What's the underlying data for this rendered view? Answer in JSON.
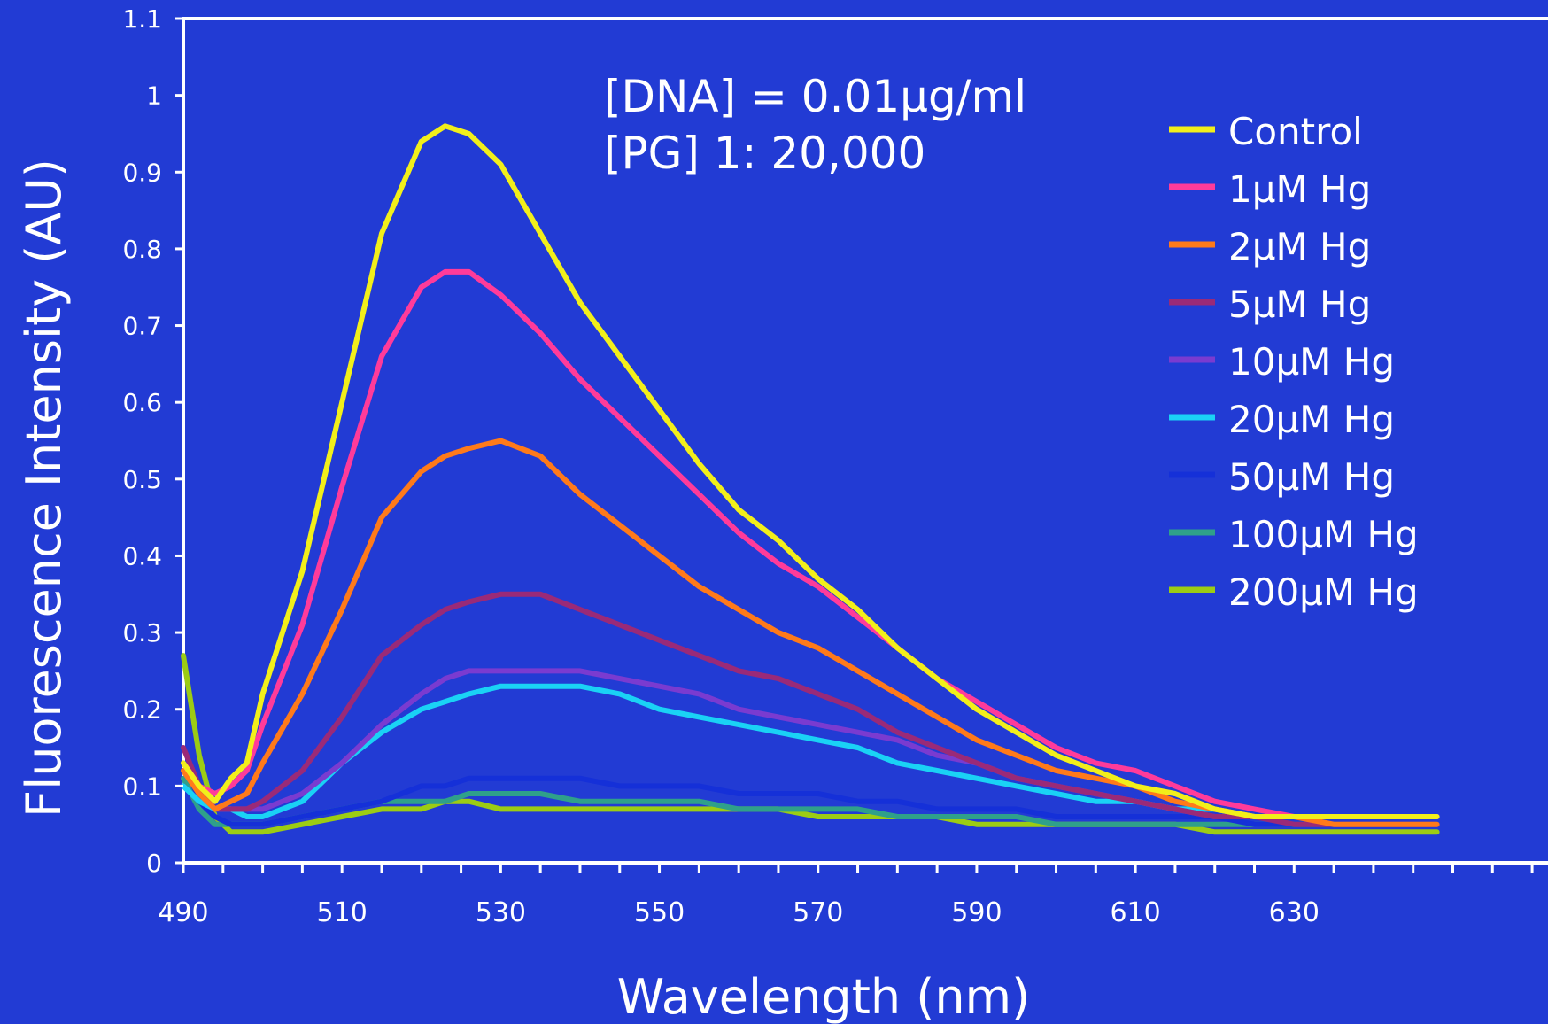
{
  "chart_data": {
    "type": "line",
    "xlabel": "Wavelength (nm)",
    "ylabel": "Fluorescence Intensity (AU)",
    "annotation": [
      "[DNA] = 0.01μg/ml",
      "[PG] 1: 20,000"
    ],
    "xlim": [
      490,
      648
    ],
    "ylim": [
      0,
      1.1
    ],
    "x_ticks": [
      490,
      510,
      530,
      550,
      570,
      590,
      610,
      630
    ],
    "y_ticks": [
      0,
      0.1,
      0.2,
      0.3,
      0.4,
      0.5,
      0.6,
      0.7,
      0.8,
      0.9,
      1,
      1.1
    ],
    "y_tick_labels": [
      "0",
      "0.1",
      "0.2",
      "0.3",
      "0.4",
      "0.5",
      "0.6",
      "0.7",
      "0.8",
      "0.9",
      "1",
      "1.1"
    ],
    "legend_position": "top-right",
    "grid": false,
    "colors": {
      "background": "#223bd4",
      "axis": "#ffffff"
    },
    "x": [
      490,
      492,
      494,
      496,
      498,
      500,
      505,
      510,
      515,
      520,
      523,
      526,
      530,
      535,
      540,
      545,
      550,
      555,
      560,
      565,
      570,
      575,
      580,
      585,
      590,
      595,
      600,
      605,
      610,
      615,
      620,
      625,
      630,
      635,
      640,
      645,
      648
    ],
    "series": [
      {
        "name": "Control",
        "color": "#f2ef1a",
        "values": [
          0.13,
          0.1,
          0.08,
          0.11,
          0.13,
          0.22,
          0.38,
          0.6,
          0.82,
          0.94,
          0.96,
          0.95,
          0.91,
          0.82,
          0.73,
          0.66,
          0.59,
          0.52,
          0.46,
          0.42,
          0.37,
          0.33,
          0.28,
          0.24,
          0.2,
          0.17,
          0.14,
          0.12,
          0.1,
          0.09,
          0.07,
          0.06,
          0.06,
          0.06,
          0.06,
          0.06,
          0.06
        ]
      },
      {
        "name": "1μM Hg",
        "color": "#ff3b9a",
        "values": [
          0.13,
          0.1,
          0.09,
          0.1,
          0.12,
          0.18,
          0.31,
          0.49,
          0.66,
          0.75,
          0.77,
          0.77,
          0.74,
          0.69,
          0.63,
          0.58,
          0.53,
          0.48,
          0.43,
          0.39,
          0.36,
          0.32,
          0.28,
          0.24,
          0.21,
          0.18,
          0.15,
          0.13,
          0.12,
          0.1,
          0.08,
          0.07,
          0.06,
          0.06,
          0.06,
          0.06,
          0.06
        ]
      },
      {
        "name": "2μM Hg",
        "color": "#ff7a1a",
        "values": [
          0.12,
          0.09,
          0.07,
          0.08,
          0.09,
          0.13,
          0.22,
          0.33,
          0.45,
          0.51,
          0.53,
          0.54,
          0.55,
          0.53,
          0.48,
          0.44,
          0.4,
          0.36,
          0.33,
          0.3,
          0.28,
          0.25,
          0.22,
          0.19,
          0.16,
          0.14,
          0.12,
          0.11,
          0.1,
          0.08,
          0.07,
          0.06,
          0.06,
          0.05,
          0.05,
          0.05,
          0.05
        ]
      },
      {
        "name": "5μM Hg",
        "color": "#9a2a78",
        "values": [
          0.15,
          0.1,
          0.07,
          0.07,
          0.07,
          0.08,
          0.12,
          0.19,
          0.27,
          0.31,
          0.33,
          0.34,
          0.35,
          0.35,
          0.33,
          0.31,
          0.29,
          0.27,
          0.25,
          0.24,
          0.22,
          0.2,
          0.17,
          0.15,
          0.13,
          0.11,
          0.1,
          0.09,
          0.08,
          0.07,
          0.06,
          0.06,
          0.05,
          0.05,
          0.05,
          0.05,
          0.05
        ]
      },
      {
        "name": "10μM Hg",
        "color": "#7a3bd0",
        "values": [
          0.12,
          0.09,
          0.07,
          0.07,
          0.07,
          0.07,
          0.09,
          0.13,
          0.18,
          0.22,
          0.24,
          0.25,
          0.25,
          0.25,
          0.25,
          0.24,
          0.23,
          0.22,
          0.2,
          0.19,
          0.18,
          0.17,
          0.16,
          0.14,
          0.13,
          0.11,
          0.1,
          0.09,
          0.08,
          0.07,
          0.06,
          0.06,
          0.06,
          0.06,
          0.06,
          0.06,
          0.06
        ]
      },
      {
        "name": "20μM Hg",
        "color": "#1ad2f5",
        "values": [
          0.1,
          0.08,
          0.07,
          0.07,
          0.06,
          0.06,
          0.08,
          0.13,
          0.17,
          0.2,
          0.21,
          0.22,
          0.23,
          0.23,
          0.23,
          0.22,
          0.2,
          0.19,
          0.18,
          0.17,
          0.16,
          0.15,
          0.13,
          0.12,
          0.11,
          0.1,
          0.09,
          0.08,
          0.08,
          0.07,
          0.07,
          0.06,
          0.06,
          0.06,
          0.06,
          0.06,
          0.06
        ]
      },
      {
        "name": "50μM Hg",
        "color": "#1530d8",
        "values": [
          0.1,
          0.08,
          0.06,
          0.05,
          0.05,
          0.05,
          0.06,
          0.07,
          0.08,
          0.1,
          0.1,
          0.11,
          0.11,
          0.11,
          0.11,
          0.1,
          0.1,
          0.1,
          0.09,
          0.09,
          0.09,
          0.08,
          0.08,
          0.07,
          0.07,
          0.07,
          0.06,
          0.06,
          0.06,
          0.06,
          0.06,
          0.05,
          0.05,
          0.05,
          0.05,
          0.05,
          0.05
        ]
      },
      {
        "name": "100μM Hg",
        "color": "#2fa08a",
        "values": [
          0.11,
          0.07,
          0.05,
          0.05,
          0.05,
          0.05,
          0.06,
          0.07,
          0.08,
          0.08,
          0.08,
          0.09,
          0.09,
          0.09,
          0.08,
          0.08,
          0.08,
          0.08,
          0.07,
          0.07,
          0.07,
          0.07,
          0.06,
          0.06,
          0.06,
          0.06,
          0.05,
          0.05,
          0.05,
          0.05,
          0.05,
          0.05,
          0.05,
          0.05,
          0.05,
          0.05,
          0.05
        ]
      },
      {
        "name": "200μM Hg",
        "color": "#9ccc14",
        "values": [
          0.27,
          0.14,
          0.06,
          0.04,
          0.04,
          0.04,
          0.05,
          0.06,
          0.07,
          0.07,
          0.08,
          0.08,
          0.07,
          0.07,
          0.07,
          0.07,
          0.07,
          0.07,
          0.07,
          0.07,
          0.06,
          0.06,
          0.06,
          0.06,
          0.05,
          0.05,
          0.05,
          0.05,
          0.05,
          0.05,
          0.04,
          0.04,
          0.04,
          0.04,
          0.04,
          0.04,
          0.04
        ]
      }
    ]
  }
}
